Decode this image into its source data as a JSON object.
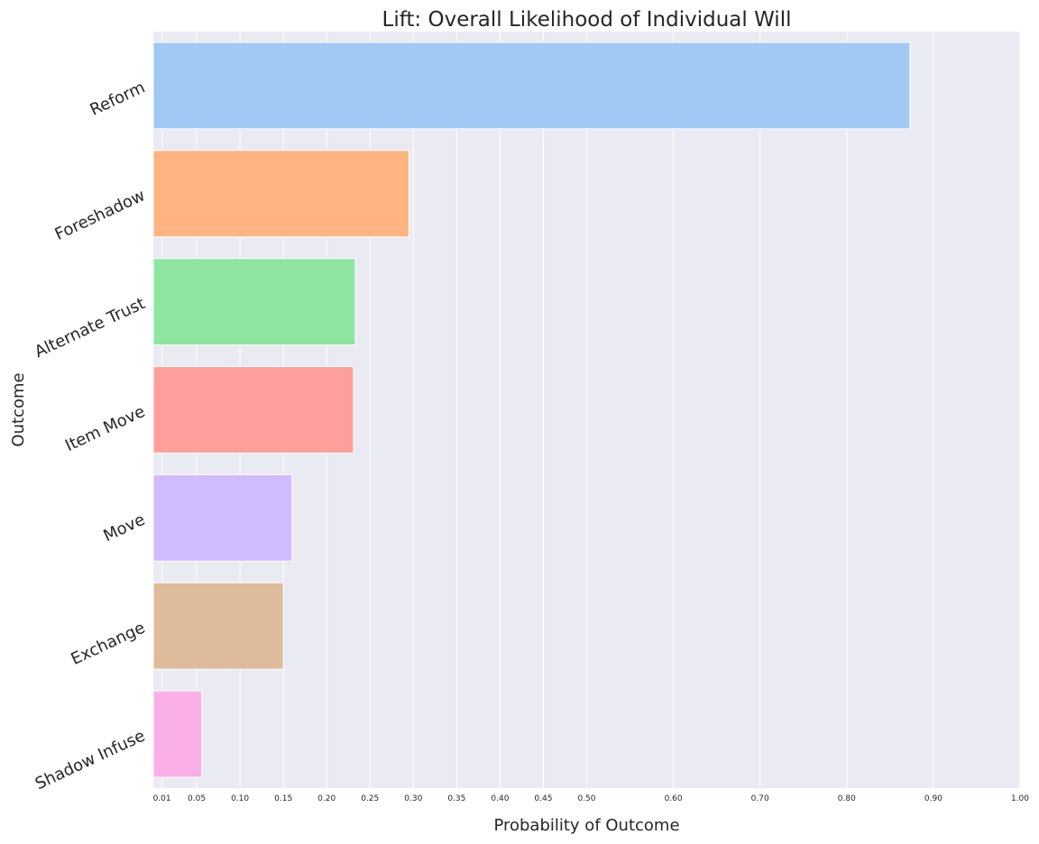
{
  "chart_data": {
    "type": "bar",
    "orientation": "horizontal",
    "title": "Lift: Overall Likelihood of Individual Will",
    "xlabel": "Probability of Outcome",
    "ylabel": "Outcome",
    "categories": [
      "Reform",
      "Foreshadow",
      "Alternate Trust",
      "Item Move",
      "Move",
      "Exchange",
      "Shadow Infuse"
    ],
    "values": [
      0.873,
      0.295,
      0.233,
      0.231,
      0.16,
      0.15,
      0.056
    ],
    "colors": [
      "#a1c9f4",
      "#ffb482",
      "#8de5a1",
      "#ff9f9b",
      "#d0bbff",
      "#debb9b",
      "#fab0e4"
    ],
    "xlim": [
      0.0,
      1.0
    ],
    "xticks": [
      0.01,
      0.05,
      0.1,
      0.15,
      0.2,
      0.25,
      0.3,
      0.35,
      0.4,
      0.45,
      0.5,
      0.6,
      0.7,
      0.8,
      0.9,
      1.0
    ],
    "xtick_labels": [
      "0.01",
      "0.05",
      "0.10",
      "0.15",
      "0.20",
      "0.25",
      "0.30",
      "0.35",
      "0.40",
      "0.45",
      "0.50",
      "0.60",
      "0.70",
      "0.80",
      "0.90",
      "1.00"
    ],
    "grid": true,
    "background": "#eaeaf2"
  }
}
